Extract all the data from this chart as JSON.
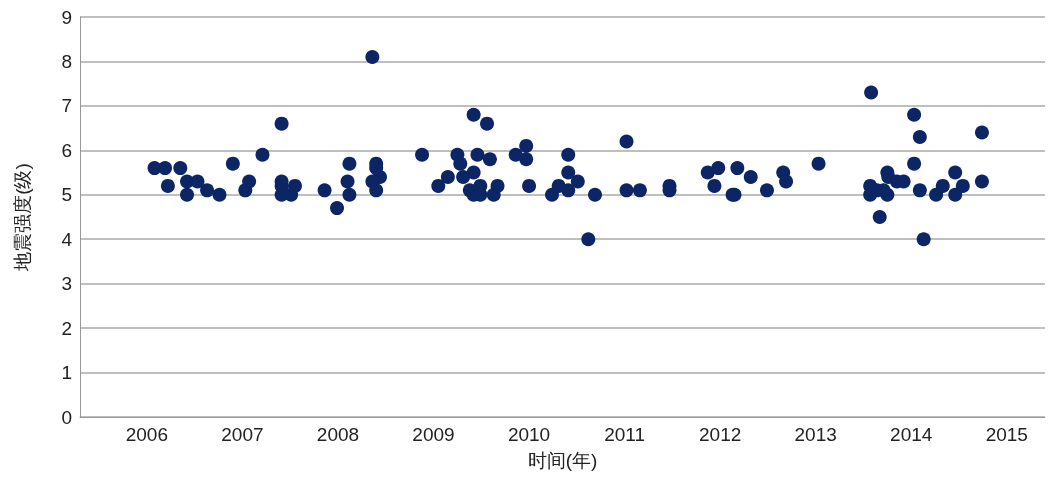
{
  "chart_data": {
    "type": "scatter",
    "xlabel": "时间(年)",
    "ylabel": "地震强度(级)",
    "x": [
      2006.08,
      2006.19,
      2006.35,
      2006.22,
      2006.42,
      2006.53,
      2006.42,
      2006.63,
      2006.76,
      2006.9,
      2007.07,
      2007.03,
      2007.21,
      2007.41,
      2007.41,
      2007.41,
      2007.41,
      2007.51,
      2007.55,
      2007.86,
      2007.99,
      2008.12,
      2008.1,
      2008.12,
      2008.36,
      2008.4,
      2008.4,
      2008.44,
      2008.36,
      2008.4,
      2008.88,
      2009.05,
      2009.15,
      2009.25,
      2009.28,
      2009.31,
      2009.42,
      2009.56,
      2009.46,
      2009.42,
      2009.38,
      2009.42,
      2009.49,
      2009.49,
      2009.59,
      2009.67,
      2009.63,
      2009.86,
      2009.97,
      2009.97,
      2010.0,
      2010.24,
      2010.31,
      2010.41,
      2010.41,
      2010.41,
      2010.51,
      2010.69,
      2010.62,
      2011.02,
      2011.02,
      2011.16,
      2011.47,
      2011.47,
      2011.87,
      2011.98,
      2011.94,
      2012.13,
      2012.18,
      2012.15,
      2012.32,
      2012.49,
      2012.66,
      2012.69,
      2013.03,
      2013.58,
      2013.57,
      2013.57,
      2013.64,
      2013.67,
      2013.75,
      2013.76,
      2013.75,
      2013.71,
      2013.85,
      2013.92,
      2014.03,
      2014.09,
      2014.03,
      2014.09,
      2014.13,
      2014.26,
      2014.33,
      2014.46,
      2014.46,
      2014.54,
      2014.74,
      2014.74
    ],
    "values": [
      5.6,
      5.6,
      5.6,
      5.2,
      5.3,
      5.3,
      5.0,
      5.1,
      5.0,
      5.7,
      5.3,
      5.1,
      5.9,
      6.6,
      5.3,
      5.2,
      5.0,
      5.0,
      5.2,
      5.1,
      4.7,
      5.7,
      5.3,
      5.0,
      8.1,
      5.7,
      5.6,
      5.4,
      5.3,
      5.1,
      5.9,
      5.2,
      5.4,
      5.9,
      5.7,
      5.4,
      6.8,
      6.6,
      5.9,
      5.5,
      5.1,
      5.0,
      5.2,
      5.0,
      5.8,
      5.2,
      5.0,
      5.9,
      6.1,
      5.8,
      5.2,
      5.0,
      5.2,
      5.9,
      5.5,
      5.1,
      5.3,
      5.0,
      4.0,
      6.2,
      5.1,
      5.1,
      5.2,
      5.1,
      5.5,
      5.6,
      5.2,
      5.0,
      5.6,
      5.0,
      5.4,
      5.1,
      5.5,
      5.3,
      5.7,
      7.3,
      5.2,
      5.0,
      5.1,
      4.5,
      5.5,
      5.4,
      5.0,
      5.1,
      5.3,
      5.3,
      6.8,
      6.3,
      5.7,
      5.1,
      4.0,
      5.0,
      5.2,
      5.5,
      5.0,
      5.2,
      6.4,
      5.3
    ],
    "color": "#0b2565",
    "marker": "circle",
    "grid": "y",
    "xlim": [
      2005.3,
      2015.4
    ],
    "xticks": [
      2006,
      2007,
      2008,
      2009,
      2010,
      2011,
      2012,
      2013,
      2014,
      2015
    ],
    "ylim": [
      0,
      9
    ],
    "yticks": [
      0,
      1,
      2,
      3,
      4,
      5,
      6,
      7,
      8,
      9
    ]
  }
}
